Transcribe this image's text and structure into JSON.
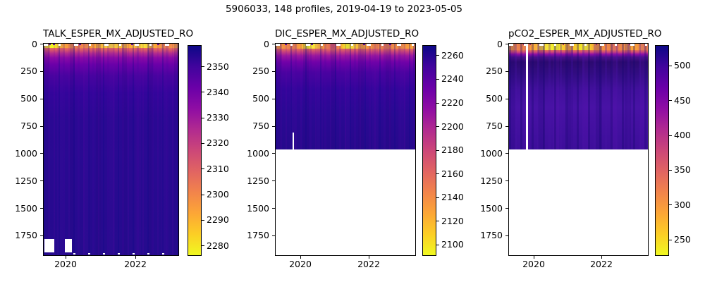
{
  "figure": {
    "title": "5906033, 148 profiles, 2019-04-19 to 2023-05-05",
    "float_id": "5906033",
    "profiles_count": "148 profiles",
    "date_start": "2019-04-19",
    "date_end": "2023-05-05",
    "background": "#ffffff"
  },
  "colors": {
    "colormap_high": "#0d0887",
    "colormap_mid": "#cc4778",
    "colormap_low": "#f0f921",
    "deep_water_fill": "#26098c",
    "axis_and_text": "#000000",
    "missing_data": "#ffffff"
  },
  "chart_data": [
    {
      "type": "heatmap",
      "title": "TALK_ESPER_MX_ADJUSTED_RO",
      "x_axis": "time",
      "x_tick_labels": [
        "2020",
        "2022"
      ],
      "x_range": [
        "2019-04-19",
        "2023-05-05"
      ],
      "y_axis": "depth (m), increasing downward",
      "y_tick_labels": [
        "0",
        "250",
        "500",
        "750",
        "1000",
        "1250",
        "1500",
        "1750"
      ],
      "y_range": [
        0,
        1930
      ],
      "colormap": "plasma reversed (yellow=low, dark navy=high)",
      "colorbar_tick_labels": [
        "2350",
        "2340",
        "2330",
        "2320",
        "2310",
        "2300",
        "2290",
        "2280"
      ],
      "colorbar_range_approx": [
        2276,
        2358
      ],
      "data_depth_extent_m": [
        0,
        1930
      ],
      "depth_profile_estimate": [
        {
          "depth_m": 0,
          "value": 2290
        },
        {
          "depth_m": 60,
          "value": 2310
        },
        {
          "depth_m": 120,
          "value": 2330
        },
        {
          "depth_m": 250,
          "value": 2345
        },
        {
          "depth_m": 500,
          "value": 2352
        },
        {
          "depth_m": 1900,
          "value": 2355
        }
      ],
      "missing_data": "two white blocks near bottom-left (~1790-1900 m, mid-2019 and early-2020); scattered missing bins along top row and deepest row"
    },
    {
      "type": "heatmap",
      "title": "DIC_ESPER_MX_ADJUSTED_RO",
      "x_axis": "time",
      "x_tick_labels": [
        "2020",
        "2022"
      ],
      "x_range": [
        "2019-04-19",
        "2023-05-05"
      ],
      "y_axis": "depth (m), increasing downward",
      "y_tick_labels": [
        "0",
        "250",
        "500",
        "750",
        "1000",
        "1250",
        "1500",
        "1750"
      ],
      "y_range": [
        0,
        1930
      ],
      "colormap": "plasma reversed (yellow=low, dark navy=high)",
      "colorbar_tick_labels": [
        "2260",
        "2240",
        "2220",
        "2200",
        "2180",
        "2160",
        "2140",
        "2120",
        "2100"
      ],
      "colorbar_range_approx": [
        2091,
        2268
      ],
      "data_depth_extent_m": [
        0,
        965
      ],
      "depth_profile_estimate": [
        {
          "depth_m": 0,
          "value": 2130
        },
        {
          "depth_m": 40,
          "value": 2180
        },
        {
          "depth_m": 100,
          "value": 2215
        },
        {
          "depth_m": 200,
          "value": 2245
        },
        {
          "depth_m": 400,
          "value": 2258
        },
        {
          "depth_m": 950,
          "value": 2262
        }
      ],
      "missing_data": "no data below ~965 m (white); one thin vertical gap (~840-965 m) just before 2020; scattered missing bins along top row"
    },
    {
      "type": "heatmap",
      "title": "pCO2_ESPER_MX_ADJUSTED_RO",
      "x_axis": "time",
      "x_tick_labels": [
        "2020",
        "2022"
      ],
      "x_range": [
        "2019-04-19",
        "2023-05-05"
      ],
      "y_axis": "depth (m), increasing downward",
      "y_tick_labels": [
        "0",
        "250",
        "500",
        "750",
        "1000",
        "1250",
        "1500",
        "1750"
      ],
      "y_range": [
        0,
        1930
      ],
      "colormap": "plasma reversed (yellow=low, dark navy=high)",
      "colorbar_tick_labels": [
        "500",
        "450",
        "400",
        "350",
        "300",
        "250"
      ],
      "colorbar_range_approx": [
        228,
        528
      ],
      "data_depth_extent_m": [
        0,
        965
      ],
      "depth_profile_estimate": [
        {
          "depth_m": 0,
          "value": 300
        },
        {
          "depth_m": 30,
          "value": 350
        },
        {
          "depth_m": 80,
          "value": 480
        },
        {
          "depth_m": 150,
          "value": 520
        },
        {
          "depth_m": 300,
          "value": 515
        },
        {
          "depth_m": 600,
          "value": 495
        },
        {
          "depth_m": 950,
          "value": 490
        }
      ],
      "missing_data": "no data below ~965 m (white); one full-depth vertical gap (one missing profile) in late 2019; scattered missing bins along top row"
    }
  ]
}
